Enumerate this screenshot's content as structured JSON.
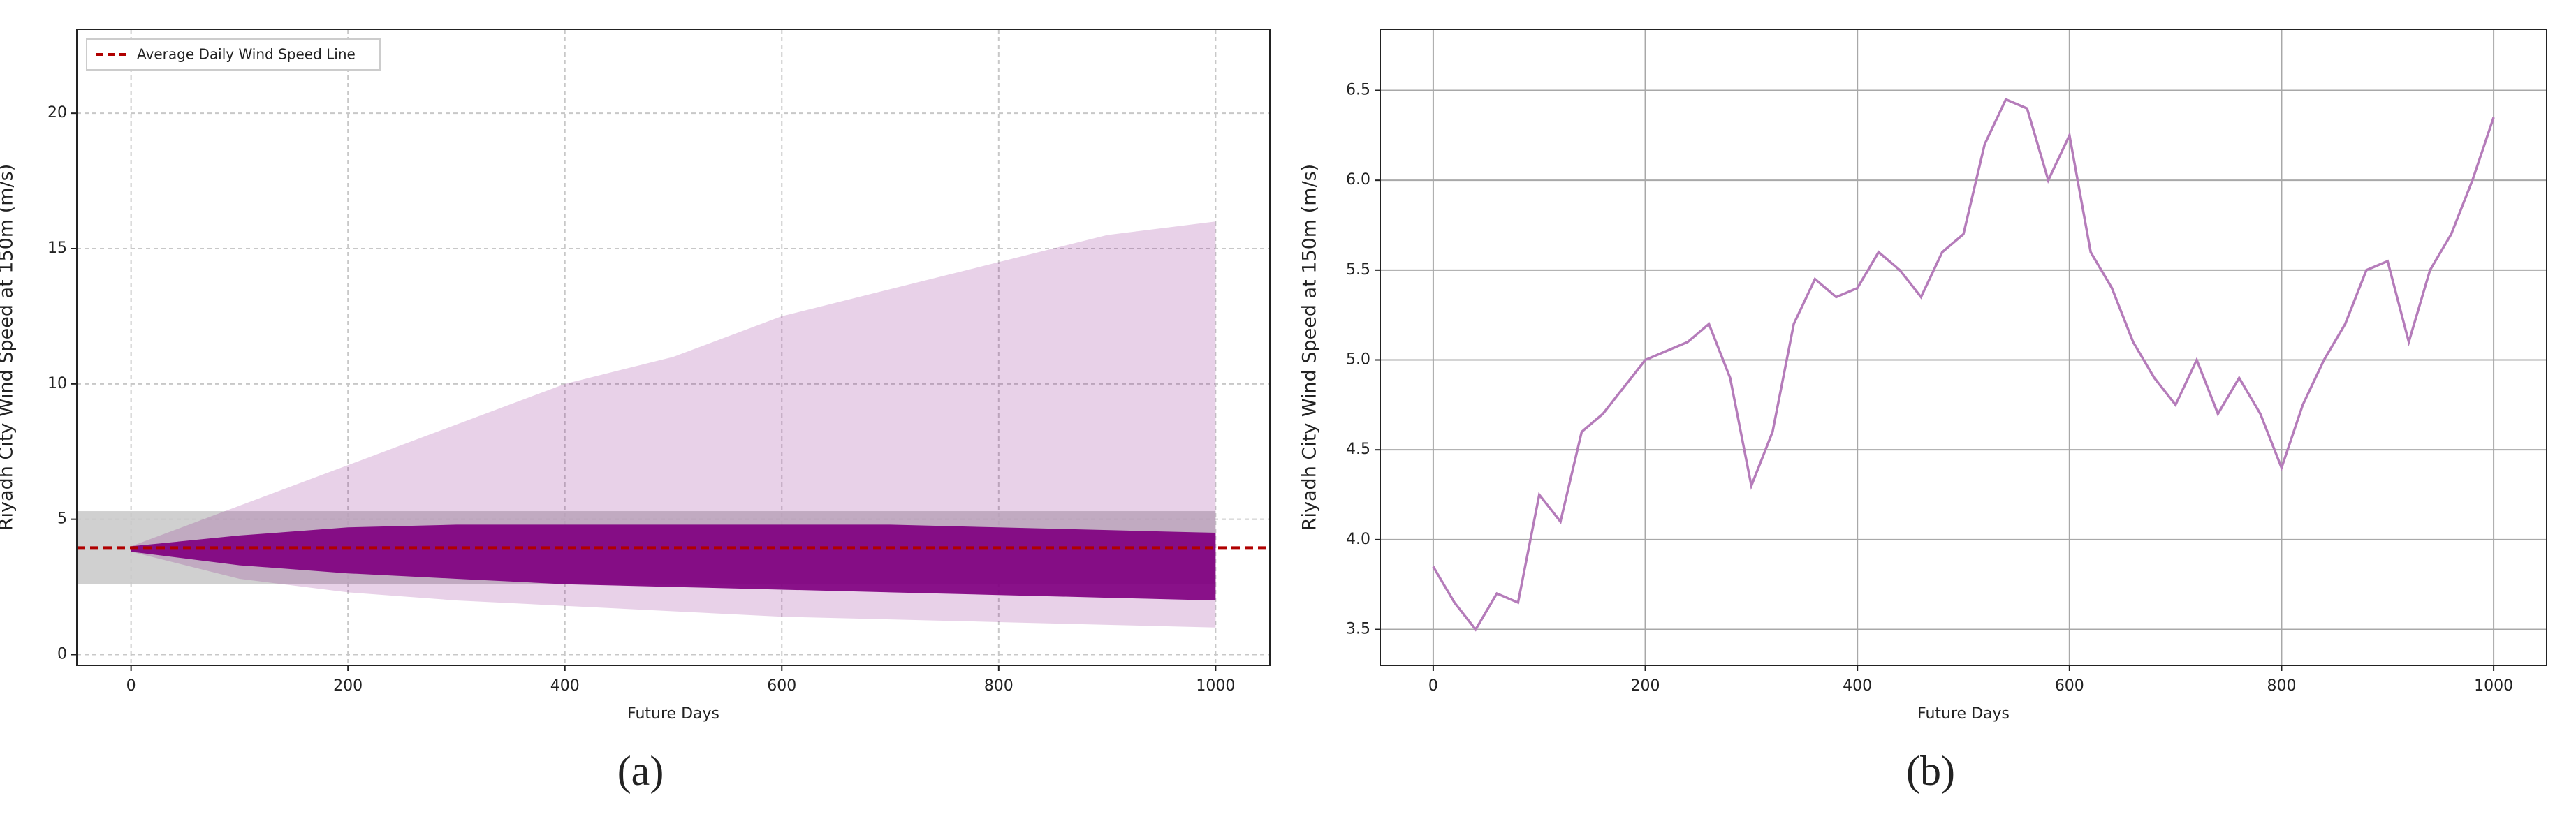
{
  "chart_data": [
    {
      "type": "fan",
      "caption": "(a)",
      "x_label": "Future Days",
      "y_label": "Riyadh City Wind Speed at 150m (m/s)",
      "xlim": [
        -50,
        1050
      ],
      "ylim": [
        -0.4,
        23.1
      ],
      "xticks": [
        0,
        200,
        400,
        600,
        800,
        1000
      ],
      "yticks": [
        0,
        5,
        10,
        15,
        20
      ],
      "grid": "dashed",
      "legend": "upper left",
      "color": "#800080",
      "band_color": "#c8c8c8",
      "x": [
        0,
        100,
        200,
        300,
        400,
        500,
        600,
        700,
        800,
        900,
        1000
      ],
      "outer_upper": [
        4.0,
        5.5,
        7,
        8.5,
        10,
        11,
        12.5,
        13.5,
        14.5,
        15.5,
        16
      ],
      "outer_lower": [
        3.8,
        2.8,
        2.3,
        2.0,
        1.8,
        1.6,
        1.4,
        1.3,
        1.2,
        1.1,
        1.0
      ],
      "core_upper": [
        4.0,
        4.4,
        4.7,
        4.8,
        4.8,
        4.8,
        4.8,
        4.8,
        4.7,
        4.6,
        4.5
      ],
      "core_lower": [
        3.8,
        3.3,
        3.0,
        2.8,
        2.6,
        2.5,
        2.4,
        2.3,
        2.2,
        2.1,
        2.0
      ],
      "band": [
        2.6,
        5.3
      ],
      "series": [
        {
          "name": "Average Daily Wind Speed Line",
          "color": "#b00000",
          "value": 3.95
        }
      ]
    },
    {
      "type": "line",
      "caption": "(b)",
      "x_label": "Future Days",
      "y_label": "Riyadh City Wind Speed at 150m (m/s)",
      "xlim": [
        -50,
        1050
      ],
      "ylim": [
        3.3,
        6.84
      ],
      "xticks": [
        0,
        200,
        400,
        600,
        800,
        1000
      ],
      "yticks": [
        {
          "value": 3.5,
          "label": "3.5"
        },
        {
          "value": 4,
          "label": "4.0"
        },
        {
          "value": 4.5,
          "label": "4.5"
        },
        {
          "value": 5,
          "label": "5.0"
        },
        {
          "value": 5.5,
          "label": "5.5"
        },
        {
          "value": 6,
          "label": "6.0"
        },
        {
          "value": 6.5,
          "label": "6.5"
        }
      ],
      "grid": "solid",
      "color": "#b57cba",
      "x": [
        0,
        20,
        40,
        60,
        80,
        100,
        120,
        140,
        160,
        180,
        200,
        220,
        240,
        260,
        280,
        300,
        320,
        340,
        360,
        380,
        400,
        420,
        440,
        460,
        480,
        500,
        520,
        540,
        560,
        580,
        600,
        620,
        640,
        660,
        680,
        700,
        720,
        740,
        760,
        780,
        800,
        820,
        840,
        860,
        880,
        900,
        920,
        940,
        960,
        980,
        1000
      ],
      "values": [
        3.85,
        3.65,
        3.5,
        3.7,
        3.65,
        4.25,
        4.1,
        4.6,
        4.7,
        4.85,
        5.0,
        5.05,
        5.1,
        5.2,
        4.9,
        4.3,
        4.6,
        5.2,
        5.45,
        5.35,
        5.4,
        5.6,
        5.5,
        5.35,
        5.6,
        5.7,
        6.2,
        6.45,
        6.4,
        6.0,
        6.25,
        5.6,
        5.4,
        5.1,
        4.9,
        4.75,
        5.0,
        4.7,
        4.9,
        4.7,
        4.4,
        4.75,
        5.0,
        5.2,
        5.5,
        5.55,
        5.1,
        5.5,
        5.7,
        6.0,
        6.35
      ]
    }
  ]
}
